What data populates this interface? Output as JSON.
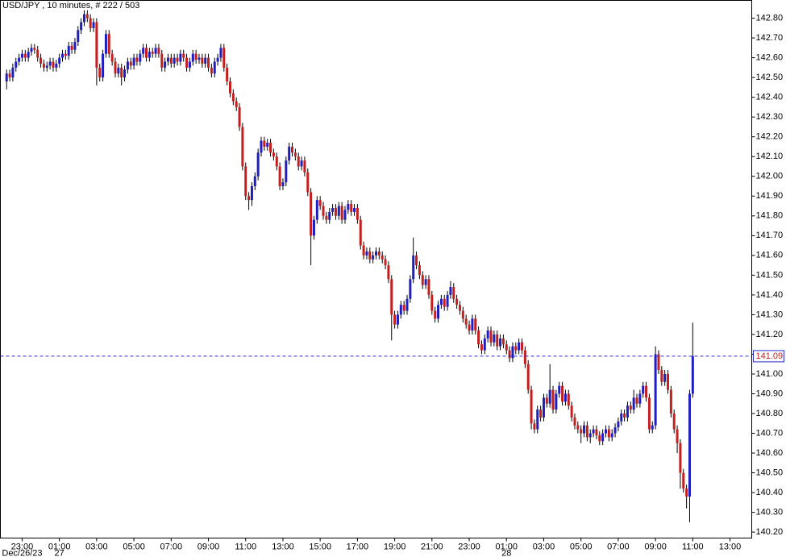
{
  "chart_data": {
    "type": "candlestick",
    "title": "USD/JPY , 10 minutes, # 222 / 503",
    "up_color": "#1f1fbf",
    "down_color": "#c41f1f",
    "last_price_color": "#2a2ac8",
    "last_price_text_color": "#c41f1f",
    "last_price": 141.09,
    "xlim": [
      -2,
      240
    ],
    "ylim": [
      140.17,
      142.89
    ],
    "yticks": [
      {
        "value": 140.2,
        "label": "140.20"
      },
      {
        "value": 140.3,
        "label": "140.30"
      },
      {
        "value": 140.4,
        "label": "140.40"
      },
      {
        "value": 140.5,
        "label": "140.50"
      },
      {
        "value": 140.6,
        "label": "140.60"
      },
      {
        "value": 140.7,
        "label": "140.70"
      },
      {
        "value": 140.8,
        "label": "140.80"
      },
      {
        "value": 140.9,
        "label": "140.90"
      },
      {
        "value": 141.0,
        "label": "141.00"
      },
      {
        "value": 141.1,
        "label": "141.10"
      },
      {
        "value": 141.2,
        "label": "141.20"
      },
      {
        "value": 141.3,
        "label": "141.30"
      },
      {
        "value": 141.4,
        "label": "141.40"
      },
      {
        "value": 141.5,
        "label": "141.50"
      },
      {
        "value": 141.6,
        "label": "141.60"
      },
      {
        "value": 141.7,
        "label": "141.70"
      },
      {
        "value": 141.8,
        "label": "141.80"
      },
      {
        "value": 141.9,
        "label": "141.90"
      },
      {
        "value": 142.0,
        "label": "142.00"
      },
      {
        "value": 142.1,
        "label": "142.10"
      },
      {
        "value": 142.2,
        "label": "142.20"
      },
      {
        "value": 142.3,
        "label": "142.30"
      },
      {
        "value": 142.4,
        "label": "142.40"
      },
      {
        "value": 142.5,
        "label": "142.50"
      },
      {
        "value": 142.6,
        "label": "142.60"
      },
      {
        "value": 142.7,
        "label": "142.70"
      },
      {
        "value": 142.8,
        "label": "142.80"
      }
    ],
    "xticks": [
      {
        "value": 5,
        "label": "23:00"
      },
      {
        "value": 17,
        "label": "01:00"
      },
      {
        "value": 29,
        "label": "03:00"
      },
      {
        "value": 41,
        "label": "05:00"
      },
      {
        "value": 53,
        "label": "07:00"
      },
      {
        "value": 65,
        "label": "09:00"
      },
      {
        "value": 77,
        "label": "11:00"
      },
      {
        "value": 89,
        "label": "13:00"
      },
      {
        "value": 101,
        "label": "15:00"
      },
      {
        "value": 113,
        "label": "17:00"
      },
      {
        "value": 125,
        "label": "19:00"
      },
      {
        "value": 137,
        "label": "21:00"
      },
      {
        "value": 149,
        "label": "23:00"
      },
      {
        "value": 161,
        "label": "01:00"
      },
      {
        "value": 173,
        "label": "03:00"
      },
      {
        "value": 185,
        "label": "05:00"
      },
      {
        "value": 197,
        "label": "07:00"
      },
      {
        "value": 209,
        "label": "09:00"
      },
      {
        "value": 221,
        "label": "11:00"
      },
      {
        "value": 233,
        "label": "13:00"
      }
    ],
    "date_labels": [
      {
        "value": 5,
        "label": "Dec/26/23"
      },
      {
        "value": 17,
        "label": "27"
      },
      {
        "value": 161,
        "label": "28"
      }
    ],
    "open": [
      142.48,
      142.52,
      142.5,
      142.55,
      142.58,
      142.6,
      142.62,
      142.6,
      142.63,
      142.65,
      142.64,
      142.6,
      142.57,
      142.55,
      142.56,
      142.58,
      142.55,
      142.57,
      142.6,
      142.62,
      142.61,
      142.66,
      142.64,
      142.68,
      142.74,
      142.78,
      142.82,
      142.8,
      142.75,
      142.78,
      142.55,
      142.5,
      142.62,
      142.72,
      142.62,
      142.58,
      142.52,
      142.55,
      142.5,
      142.54,
      142.58,
      142.56,
      142.6,
      142.58,
      142.62,
      142.65,
      142.6,
      142.63,
      142.62,
      142.65,
      142.62,
      142.55,
      142.58,
      142.6,
      142.57,
      142.6,
      142.58,
      142.62,
      142.6,
      142.55,
      142.58,
      142.62,
      142.59,
      142.6,
      142.57,
      142.6,
      142.55,
      142.52,
      142.58,
      142.6,
      142.65,
      142.55,
      142.48,
      142.42,
      142.38,
      142.35,
      142.25,
      142.05,
      141.9,
      141.88,
      141.95,
      142.0,
      142.12,
      142.18,
      142.15,
      142.17,
      142.12,
      142.1,
      142.05,
      141.95,
      141.97,
      142.08,
      142.15,
      142.12,
      142.1,
      142.05,
      142.08,
      142.02,
      141.92,
      141.7,
      141.78,
      141.88,
      141.85,
      141.8,
      141.78,
      141.82,
      141.84,
      141.8,
      141.85,
      141.78,
      141.83,
      141.86,
      141.82,
      141.84,
      141.78,
      141.65,
      141.6,
      141.62,
      141.58,
      141.6,
      141.62,
      141.6,
      141.58,
      141.55,
      141.48,
      141.3,
      141.25,
      141.3,
      141.35,
      141.32,
      141.38,
      141.48,
      141.6,
      141.55,
      141.5,
      141.45,
      141.48,
      141.4,
      141.32,
      141.28,
      141.35,
      141.38,
      141.34,
      141.4,
      141.44,
      141.38,
      141.35,
      141.32,
      141.28,
      141.25,
      141.22,
      141.28,
      141.22,
      141.15,
      141.12,
      141.18,
      141.22,
      141.16,
      141.2,
      141.14,
      141.18,
      141.15,
      141.12,
      141.08,
      141.14,
      141.12,
      141.16,
      141.12,
      141.05,
      140.92,
      140.75,
      140.72,
      140.82,
      140.78,
      140.88,
      140.85,
      140.92,
      140.82,
      140.9,
      140.94,
      140.86,
      140.9,
      140.84,
      140.78,
      140.74,
      140.72,
      140.7,
      140.74,
      140.68,
      140.7,
      140.72,
      140.69,
      140.66,
      140.7,
      140.72,
      140.68,
      140.7,
      140.73,
      140.76,
      140.8,
      140.78,
      140.84,
      140.82,
      140.88,
      140.85,
      140.9,
      140.94,
      140.88,
      140.72,
      140.74,
      141.1,
      141.02,
      140.96,
      141.0,
      140.92,
      140.8,
      140.72,
      140.65,
      140.5,
      140.42,
      140.38,
      140.9
    ],
    "high": [
      142.54,
      142.54,
      142.57,
      142.6,
      142.62,
      142.64,
      142.64,
      142.65,
      142.67,
      142.67,
      142.66,
      142.62,
      142.59,
      142.58,
      142.6,
      142.6,
      142.59,
      142.62,
      142.64,
      142.64,
      142.68,
      142.68,
      142.7,
      142.76,
      142.8,
      142.84,
      142.84,
      142.82,
      142.8,
      142.8,
      142.57,
      142.64,
      142.74,
      142.74,
      142.64,
      142.6,
      142.57,
      142.57,
      142.56,
      142.6,
      142.6,
      142.62,
      142.62,
      142.64,
      142.67,
      142.67,
      142.65,
      142.65,
      142.67,
      142.67,
      142.64,
      142.6,
      142.62,
      142.62,
      142.62,
      142.62,
      142.64,
      142.64,
      142.62,
      142.6,
      142.64,
      142.64,
      142.62,
      142.62,
      142.62,
      142.62,
      142.57,
      142.6,
      142.62,
      142.67,
      142.67,
      142.57,
      142.5,
      142.44,
      142.4,
      142.37,
      142.27,
      142.07,
      141.92,
      141.97,
      142.02,
      142.14,
      142.2,
      142.2,
      142.19,
      142.19,
      142.14,
      142.12,
      142.07,
      141.99,
      142.1,
      142.17,
      142.17,
      142.14,
      142.12,
      142.1,
      142.1,
      142.04,
      141.94,
      141.8,
      141.9,
      141.9,
      141.87,
      141.82,
      141.84,
      141.86,
      141.86,
      141.87,
      141.87,
      141.85,
      141.88,
      141.88,
      141.86,
      141.86,
      141.8,
      141.67,
      141.64,
      141.64,
      141.62,
      141.64,
      141.64,
      141.62,
      141.6,
      141.57,
      141.5,
      141.32,
      141.32,
      141.37,
      141.37,
      141.4,
      141.5,
      141.69,
      141.62,
      141.57,
      141.52,
      141.5,
      141.5,
      141.42,
      141.34,
      141.37,
      141.4,
      141.4,
      141.42,
      141.47,
      141.46,
      141.4,
      141.37,
      141.34,
      141.3,
      141.27,
      141.3,
      141.3,
      141.24,
      141.17,
      141.2,
      141.24,
      141.24,
      141.22,
      141.22,
      141.2,
      141.2,
      141.17,
      141.14,
      141.16,
      141.16,
      141.18,
      141.18,
      141.14,
      141.07,
      140.94,
      140.77,
      140.84,
      140.84,
      140.9,
      140.9,
      141.05,
      140.94,
      140.92,
      140.96,
      140.96,
      140.92,
      140.92,
      140.86,
      140.8,
      140.76,
      140.74,
      140.76,
      140.76,
      140.72,
      140.74,
      140.74,
      140.71,
      140.72,
      140.74,
      140.74,
      140.72,
      140.75,
      140.78,
      140.82,
      140.82,
      140.86,
      140.86,
      140.92,
      140.9,
      140.92,
      140.96,
      140.96,
      140.9,
      140.76,
      141.14,
      141.12,
      141.04,
      141.02,
      141.02,
      140.94,
      140.82,
      140.74,
      140.67,
      140.52,
      140.44,
      140.92,
      141.26
    ],
    "low": [
      142.44,
      142.48,
      142.48,
      142.53,
      142.56,
      142.58,
      142.58,
      142.58,
      142.61,
      142.62,
      142.58,
      142.55,
      142.53,
      142.53,
      142.54,
      142.53,
      142.53,
      142.55,
      142.58,
      142.59,
      142.59,
      142.62,
      142.62,
      142.66,
      142.72,
      142.76,
      142.78,
      142.73,
      142.73,
      142.46,
      142.48,
      142.48,
      142.6,
      142.6,
      142.56,
      142.5,
      142.5,
      142.46,
      142.48,
      142.52,
      142.54,
      142.54,
      142.56,
      142.56,
      142.6,
      142.58,
      142.58,
      142.6,
      142.6,
      142.6,
      142.53,
      142.53,
      142.56,
      142.55,
      142.55,
      142.56,
      142.56,
      142.58,
      142.53,
      142.53,
      142.56,
      142.57,
      142.57,
      142.55,
      142.55,
      142.53,
      142.5,
      142.5,
      142.56,
      142.58,
      142.53,
      142.46,
      142.4,
      142.36,
      142.33,
      142.23,
      142.03,
      141.88,
      141.83,
      141.85,
      141.93,
      141.98,
      142.1,
      142.13,
      142.13,
      142.1,
      142.08,
      142.03,
      141.93,
      141.93,
      141.95,
      142.06,
      142.1,
      142.08,
      142.03,
      142.03,
      142.0,
      141.9,
      141.55,
      141.68,
      141.76,
      141.83,
      141.78,
      141.76,
      141.76,
      141.8,
      141.78,
      141.78,
      141.76,
      141.76,
      141.81,
      141.8,
      141.8,
      141.76,
      141.63,
      141.58,
      141.58,
      141.56,
      141.56,
      141.58,
      141.58,
      141.56,
      141.53,
      141.46,
      141.17,
      141.23,
      141.23,
      141.28,
      141.3,
      141.3,
      141.36,
      141.46,
      141.53,
      141.48,
      141.43,
      141.43,
      141.38,
      141.3,
      141.26,
      141.26,
      141.33,
      141.32,
      141.32,
      141.38,
      141.36,
      141.33,
      141.3,
      141.26,
      141.23,
      141.2,
      141.2,
      141.2,
      141.13,
      141.1,
      141.1,
      141.16,
      141.14,
      141.14,
      141.12,
      141.12,
      141.13,
      141.1,
      141.06,
      141.06,
      141.1,
      141.1,
      141.1,
      141.03,
      140.9,
      140.72,
      140.7,
      140.7,
      140.76,
      140.76,
      140.83,
      140.83,
      140.8,
      140.8,
      140.88,
      140.84,
      140.84,
      140.82,
      140.76,
      140.72,
      140.7,
      140.65,
      140.68,
      140.66,
      140.65,
      140.68,
      140.67,
      140.64,
      140.64,
      140.68,
      140.66,
      140.66,
      140.68,
      140.71,
      140.74,
      140.76,
      140.76,
      140.8,
      140.8,
      140.83,
      140.83,
      140.88,
      140.86,
      140.7,
      140.7,
      140.72,
      141.0,
      140.94,
      140.94,
      140.9,
      140.78,
      140.7,
      140.6,
      140.42,
      140.4,
      140.32,
      140.25,
      140.88
    ],
    "close": [
      142.52,
      142.5,
      142.55,
      142.58,
      142.6,
      142.62,
      142.6,
      142.63,
      142.65,
      142.64,
      142.6,
      142.57,
      142.55,
      142.56,
      142.58,
      142.55,
      142.57,
      142.6,
      142.62,
      142.61,
      142.66,
      142.64,
      142.68,
      142.74,
      142.78,
      142.82,
      142.8,
      142.75,
      142.78,
      142.55,
      142.5,
      142.62,
      142.72,
      142.62,
      142.58,
      142.52,
      142.55,
      142.5,
      142.54,
      142.58,
      142.56,
      142.6,
      142.58,
      142.62,
      142.65,
      142.6,
      142.63,
      142.62,
      142.65,
      142.62,
      142.55,
      142.58,
      142.6,
      142.57,
      142.6,
      142.58,
      142.62,
      142.6,
      142.55,
      142.58,
      142.62,
      142.59,
      142.6,
      142.57,
      142.6,
      142.55,
      142.52,
      142.58,
      142.6,
      142.65,
      142.55,
      142.48,
      142.42,
      142.38,
      142.35,
      142.25,
      142.05,
      141.9,
      141.88,
      141.95,
      142.0,
      142.12,
      142.18,
      142.15,
      142.17,
      142.12,
      142.1,
      142.05,
      141.95,
      141.97,
      142.08,
      142.15,
      142.12,
      142.1,
      142.05,
      142.08,
      142.02,
      141.92,
      141.7,
      141.78,
      141.88,
      141.85,
      141.8,
      141.78,
      141.82,
      141.84,
      141.8,
      141.85,
      141.78,
      141.83,
      141.86,
      141.82,
      141.84,
      141.78,
      141.65,
      141.6,
      141.62,
      141.58,
      141.6,
      141.62,
      141.6,
      141.58,
      141.55,
      141.48,
      141.3,
      141.25,
      141.3,
      141.35,
      141.32,
      141.38,
      141.48,
      141.6,
      141.55,
      141.5,
      141.45,
      141.48,
      141.4,
      141.32,
      141.28,
      141.35,
      141.38,
      141.34,
      141.4,
      141.44,
      141.38,
      141.35,
      141.32,
      141.28,
      141.25,
      141.22,
      141.28,
      141.22,
      141.15,
      141.12,
      141.18,
      141.22,
      141.16,
      141.2,
      141.14,
      141.18,
      141.15,
      141.12,
      141.08,
      141.14,
      141.12,
      141.16,
      141.12,
      141.05,
      140.92,
      140.75,
      140.72,
      140.82,
      140.78,
      140.88,
      140.85,
      140.92,
      140.82,
      140.9,
      140.94,
      140.86,
      140.9,
      140.84,
      140.78,
      140.74,
      140.72,
      140.7,
      140.74,
      140.68,
      140.7,
      140.72,
      140.69,
      140.66,
      140.7,
      140.72,
      140.68,
      140.7,
      140.73,
      140.76,
      140.8,
      140.78,
      140.84,
      140.82,
      140.88,
      140.85,
      140.9,
      140.94,
      140.88,
      140.72,
      140.74,
      141.1,
      141.02,
      140.96,
      141.0,
      140.92,
      140.8,
      140.72,
      140.65,
      140.5,
      140.42,
      140.38,
      140.9,
      141.09
    ]
  }
}
